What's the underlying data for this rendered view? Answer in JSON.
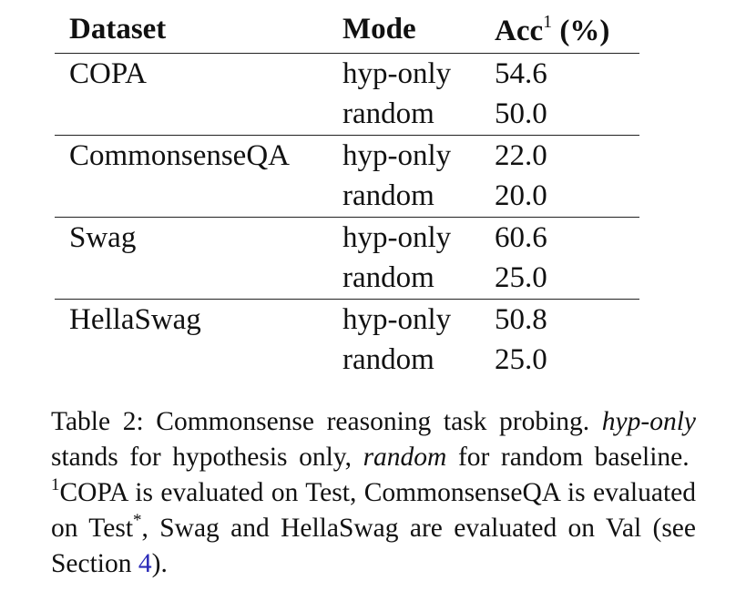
{
  "table": {
    "headers": {
      "dataset": "Dataset",
      "mode": "Mode",
      "acc": "Acc",
      "acc_sup": "1",
      "acc_unit": "(%)"
    },
    "groups": [
      {
        "dataset": "COPA",
        "rows": [
          {
            "mode": "hyp-only",
            "acc": "54.6"
          },
          {
            "mode": "random",
            "acc": "50.0"
          }
        ]
      },
      {
        "dataset": "CommonsenseQA",
        "rows": [
          {
            "mode": "hyp-only",
            "acc": "22.0"
          },
          {
            "mode": "random",
            "acc": "20.0"
          }
        ]
      },
      {
        "dataset": "Swag",
        "rows": [
          {
            "mode": "hyp-only",
            "acc": "60.6"
          },
          {
            "mode": "random",
            "acc": "25.0"
          }
        ]
      },
      {
        "dataset": "HellaSwag",
        "rows": [
          {
            "mode": "hyp-only",
            "acc": "50.8"
          },
          {
            "mode": "random",
            "acc": "25.0"
          }
        ]
      }
    ]
  },
  "caption": {
    "label": "Table 2:",
    "text1": "Commonsense reasoning task probing.",
    "hyp_only_term": "hyp-only",
    "text2": "stands for hypothesis only,",
    "random_term": "random",
    "text3": "for random baseline.",
    "footnote_mark": "1",
    "text4": "COPA is evaluated on Test, CommonsenseQA is evaluated on Test",
    "test_star": "*",
    "text5": ", Swag and HellaSwag are evaluated on Val (see Section",
    "section_ref": "4",
    "text6": ")."
  }
}
